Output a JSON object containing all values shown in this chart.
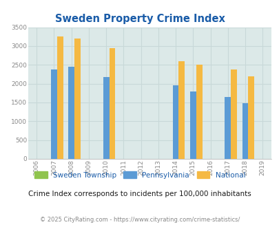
{
  "title": "Sweden Property Crime Index",
  "years": [
    2006,
    2007,
    2008,
    2009,
    2010,
    2011,
    2012,
    2013,
    2014,
    2015,
    2016,
    2017,
    2018,
    2019
  ],
  "data_years": [
    2007,
    2008,
    2010,
    2014,
    2015,
    2017,
    2018
  ],
  "sweden_values": [
    0,
    0,
    0,
    0,
    0,
    0,
    0
  ],
  "pa_values": [
    2370,
    2450,
    2175,
    1950,
    1800,
    1640,
    1490
  ],
  "national_values": [
    3250,
    3200,
    2950,
    2600,
    2500,
    2380,
    2200
  ],
  "ylim": [
    0,
    3500
  ],
  "yticks": [
    0,
    500,
    1000,
    1500,
    2000,
    2500,
    3000,
    3500
  ],
  "sweden_color": "#90c44e",
  "pa_color": "#5b9bd5",
  "national_color": "#f5b942",
  "plot_bg_color": "#dce9e8",
  "title_color": "#1a5ca8",
  "subtitle": "Crime Index corresponds to incidents per 100,000 inhabitants",
  "footer": "© 2025 CityRating.com - https://www.cityrating.com/crime-statistics/",
  "bar_width": 0.35,
  "legend_labels": [
    "Sweden Township",
    "Pennsylvania",
    "National"
  ],
  "legend_text_color": "#1a5ca8",
  "subtitle_color": "#1a1a1a",
  "footer_color": "#888888",
  "grid_color": "#c8d8d8",
  "tick_color": "#888888"
}
